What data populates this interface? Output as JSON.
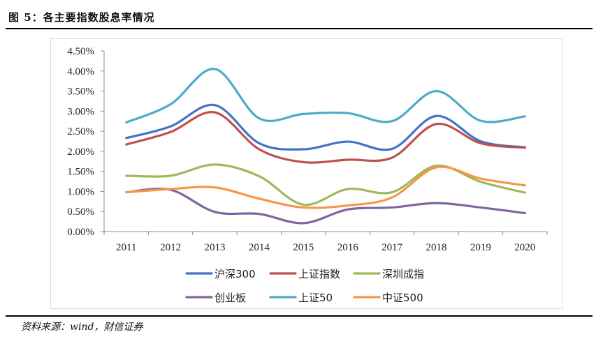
{
  "figure": {
    "title": "图 5：各主要指数股息率情况",
    "source": "资料来源：wind，财信证券"
  },
  "chart_data": {
    "type": "line",
    "categories": [
      "2011",
      "2012",
      "2013",
      "2014",
      "2015",
      "2016",
      "2017",
      "2018",
      "2019",
      "2020"
    ],
    "ylim": [
      0,
      4.5
    ],
    "y_ticks": [
      "0.00%",
      "0.50%",
      "1.00%",
      "1.50%",
      "2.00%",
      "2.50%",
      "3.00%",
      "3.50%",
      "4.00%",
      "4.50%"
    ],
    "grid": false,
    "legend_position": "bottom",
    "series": [
      {
        "name": "沪深300",
        "color": "#4472c4",
        "values": [
          2.33,
          2.62,
          3.15,
          2.2,
          2.05,
          2.24,
          2.06,
          2.88,
          2.25,
          2.1
        ]
      },
      {
        "name": "上证指数",
        "color": "#c0504d",
        "values": [
          2.17,
          2.48,
          2.97,
          2.05,
          1.73,
          1.79,
          1.84,
          2.68,
          2.2,
          2.09
        ]
      },
      {
        "name": "深圳成指",
        "color": "#9bbb59",
        "values": [
          1.39,
          1.39,
          1.67,
          1.38,
          0.67,
          1.06,
          0.98,
          1.64,
          1.24,
          0.97
        ]
      },
      {
        "name": "创业板",
        "color": "#8064a2",
        "values": [
          0.98,
          1.04,
          0.49,
          0.44,
          0.21,
          0.55,
          0.6,
          0.71,
          0.6,
          0.46
        ]
      },
      {
        "name": "上证50",
        "color": "#4bacc6",
        "values": [
          2.72,
          3.17,
          4.05,
          2.82,
          2.93,
          2.95,
          2.75,
          3.5,
          2.76,
          2.87
        ]
      },
      {
        "name": "中证500",
        "color": "#f79646",
        "values": [
          0.98,
          1.06,
          1.1,
          0.82,
          0.6,
          0.65,
          0.85,
          1.6,
          1.32,
          1.15
        ]
      }
    ]
  }
}
